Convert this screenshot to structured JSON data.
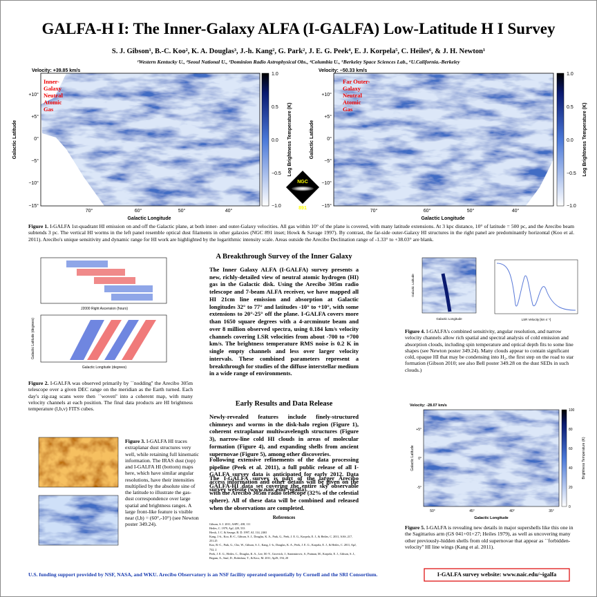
{
  "header": {
    "title": "GALFA-H I: The Inner-Galaxy ALFA (I-GALFA) Low-Latitude H I Survey",
    "authors": "S. J. Gibson¹, B.-C. Koo², K. A. Douglas³, J.-h. Kang², G. Park², J. E. G. Peek⁴, E. J. Korpela⁵, C. Heiles⁶, & J. H. Newton¹",
    "affiliations": "¹Western Kentucky U., ²Seoul National U., ³Dominion Radio Astrophysical Obs., ⁴Columbia U., ⁵Berkeley Space Sciences Lab., ⁶U.California.-Berkeley"
  },
  "figure1": {
    "panels": [
      {
        "velocity": "Velocity: +39.85 km/s",
        "label": [
          "Inner-",
          "Galaxy",
          "Neutral",
          "Atomic",
          "Gas"
        ]
      },
      {
        "velocity": "Velocity: −50.33 km/s",
        "label": [
          "Far Outer-",
          "Galaxy",
          "Neutral",
          "Atomic",
          "Gas"
        ]
      }
    ],
    "y_label": "Galactic Latitude",
    "x_label": "Galactic Longitude",
    "colorbar_label": "Log Brightness Temperature (K)",
    "y_ticks": [
      "+10°",
      "+5°",
      "0°",
      "−5°",
      "−10°",
      "−15°"
    ],
    "x_ticks": [
      "70°",
      "60°",
      "50°",
      "40°"
    ],
    "colorbar_ticks": [
      "1.0",
      "0.5",
      "0.0",
      "−0.5",
      "−1.0"
    ],
    "inset": [
      "NGC",
      "891"
    ],
    "caption_label": "Figure 1.",
    "caption": "I-GALFA 1st-quadrant HI emission on and off the Galactic plane, at both inner- and outer-Galaxy velocities.  All gas within 10° of the plane is covered, with many latitude extensions.  At 3 kpc distance, 10° of latitude = 500 pc, and the Arecibo beam subtends 3 pc.  The vertical HI worms in the left panel resemble optical dust filaments in other galaxies (NGC 891 inset; Howk & Savage 1997).  By contrast, the far-side outer-Galaxy HI structures in the right panel are predominantly horizontal (Koo et al. 2011).  Arecibo's unique sensitivity and dynamic range for HI work are highlighted by the logarithmic intensity scale.  Areas outside the Arecibo Declination range of -1.33° to +38.03° are blank."
  },
  "figure2": {
    "top_x_label": "J2000 Right Ascension (hours)",
    "bottom_x_label": "Galactic Longitude (degrees)",
    "bottom_y_label": "Galactic Latitude (degrees)",
    "caption_label": "Figure 2.",
    "caption": "I-GALFA was observed primarily by ``nodding'' the Arecibo 305m telescope over a given DEC range on the meridian as the Earth turned.  Each day's zig-zag scans were then ``woven'' into a coherent map, with many velocity channels at each position.  The final data products are HI brightness temperature (l,b,v) FITS cubes."
  },
  "figure3": {
    "caption_label": "Figure 3.",
    "caption": "I-GALFA HI traces extraplanar dust structures very well, while retaining full kinematic information.  The IRAS dust (top) and I-GALFA HI (bottom) maps here, which have similar angular resolutions, have their intensities multiplied by the absolute sine of the latitude to illustrate the gas-dust correspondence over large spatial and brightness ranges.  A large front-like feature is visible near (l,b) = (60°,-10°) (see Newton poster 349.24)."
  },
  "sections": [
    {
      "heading": "A Breakthrough Survey of the Inner Galaxy",
      "paragraphs": [
        "The Inner Galaxy ALFA (I-GALFA) survey presents a new, richly-detailed view of neutral atomic hydrogen (HI) gas in the Galactic disk. Using the Arecibo 305m radio telescope and 7-beam ALFA receiver, we have mapped all HI 21cm line emission and absorption at Galactic longitudes 32° to 77° and latitudes -10° to +10°, with some extensions to 20°-25° off the plane.  I-GALFA covers more than 1650 square degrees with a 4-arcminute beam and over 8 million observed spectra, using 0.184 km/s velocity channels covering LSR velocities from about -700 to +700 km/s.  The brightness temperature RMS noise is 0.2 K in single empty channels and less over larger velocity intervals.  These combined parameters represent a breakthrough for studies of the diffuse interstellar medium in a wide range of environments."
      ]
    },
    {
      "heading": "Early Results and Data Release",
      "paragraphs": [
        "Newly-revealed features include finely-structured chimneys and worms in the disk-halo region (Figure 1), coherent extraplanar multiwavelength structures (Figure 3), narrow-line cold HI clouds in areas of molecular formation (Figure 4), and expanding shells from ancient supernovae (Figure 5), among other discoveries.",
        "Following extensive refinements of the data processing pipeline (Peek et al. 2011), a full public release of all I-GALFA survey data is anticipated for early 2012.  Data access information and other details will be given on the survey website (www.naic.edu/~igalfa).",
        "The I-GALFA survey is part of the larger Arecibo GALFA-HI data set covering the entire sky observable with the Arecibo 305m radio telescope (32% of the celestial sphere).  All of these data will be combined and released when the observations are completed."
      ]
    }
  ],
  "references": {
    "heading": "References",
    "items": [
      "Gibson, S. J. 2011, ASPC, 438, 111",
      "Heiles, C. 1979, ApJ, 229, 533",
      "Howk, J. C. & Savage, B. D. 1997, AJ, 114, 2463",
      "Kang, J.-h., Koo, B.-C., Gibson, S. J., Douglas, K. A., Park, G., Peek, J. E. G., Korpela, E. J., & Heiles, C. 2011, AAS, 217, 251.25",
      "Koo, B.-C., Park, G., Cho, W., Gibson, S. J., Kang, J.-h., Douglas, K. A., Peek, J. E. G., Korpela, E. J., & Heiles, C. 2011, ApJ, 732, 2",
      "Peek, J. E. G., Heiles, C., Douglas, K. A., Lee, M.-Y., Grcevich, J., Stanimirovic, S., Putman, M., Korpela, E. J., Gibson, S. J., Begum, A., Saul, D., Robishaw, T., & Krco, M. 2011, ApJS, 194, 20"
    ]
  },
  "figure4": {
    "x_label": "Galactic Longitude",
    "y_label": "Galactic Latitude",
    "spectrum_x_label": "LSR Velocity [km s⁻¹]",
    "caption_label": "Figure 4.",
    "caption": "I-GALFA's combined sensitivity, angular resolution, and narrow velocity channels allow rich spatial and spectral analysis of cold emission and absorption clouds, including spin temperature and optical depth fits to some line shapes (see Newton poster 349.24).  Many clouds appear to contain significant cold, opaque HI that may be condensing into H₂, the first step on the road to star formation (Gibson 2010; see also Bell poster 349.28 on the dust SEDs in such clouds.)"
  },
  "figure5": {
    "velocity": "Velocity: -28.07 km/s",
    "x_label": "Galactic Longitude",
    "y_label": "Galactic Latitude",
    "colorbar_label": "Brightness Temperature (K)",
    "x_ticks": [
      "50°",
      "45°",
      "40°",
      "35°"
    ],
    "y_ticks": [
      "+5°",
      "0°",
      "-5°"
    ],
    "colorbar_ticks": [
      "100",
      "80",
      "60",
      "40",
      "20",
      "0"
    ],
    "caption_label": "Figure 5.",
    "caption": "I-GALFA is revealing new details in major supershells like this one in the Sagittarius arm (GS 041+01+27; Heiles 1979), as well as uncovering many other previously-hidden shells from old supernovae that appear as ``forbidden-velocity'' HI line wings (Kang et al. 2011)."
  },
  "footer": {
    "funding": "U.S. funding support provided by NSF, NASA, and WKU.  Arecibo Observatory is an NSF facility operated sequentially by Cornell and the SRI Consortium.",
    "website": "I-GALFA survey website: www.naic.edu/~igalfa"
  }
}
